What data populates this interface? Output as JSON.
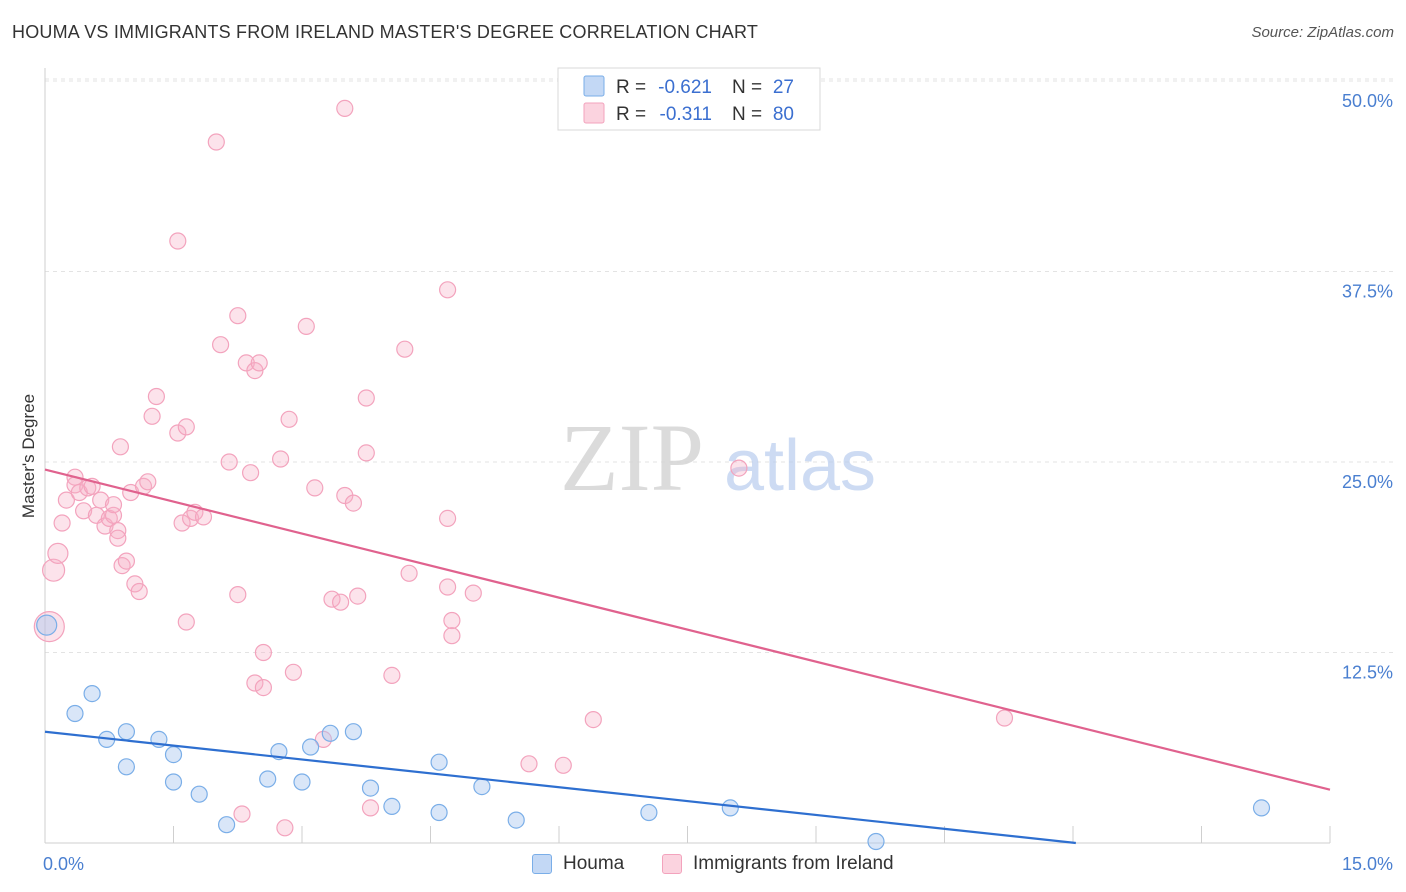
{
  "chart_data": {
    "type": "scatter",
    "title": "HOUMA VS IMMIGRANTS FROM IRELAND MASTER'S DEGREE CORRELATION CHART",
    "source": "Source: ZipAtlas.com",
    "watermark": {
      "zip": "ZIP",
      "atlas": "atlas"
    },
    "ylabel": "Master's Degree",
    "xlim": [
      0,
      15
    ],
    "ylim": [
      0,
      50
    ],
    "x_tick_labels": {
      "min": "0.0%",
      "max": "15.0%"
    },
    "y_ticks": [
      {
        "value": 12.5,
        "label": "12.5%"
      },
      {
        "value": 25,
        "label": "25.0%"
      },
      {
        "value": 37.5,
        "label": "37.5%"
      },
      {
        "value": 50,
        "label": "50.0%"
      }
    ],
    "legend": {
      "rows": [
        {
          "r_label": "R =",
          "r_value": "-0.621",
          "n_label": "N =",
          "n_value": "27"
        },
        {
          "r_label": "R =",
          "r_value": "-0.311",
          "n_label": "N =",
          "n_value": "80"
        }
      ]
    },
    "series": [
      {
        "name": "Houma",
        "color": "#7aaee8",
        "line_color": "#2e6fd0",
        "trend": {
          "x0": 0,
          "y0": 7.3,
          "x1": 15,
          "y1": -1.8
        },
        "points": [
          [
            0.02,
            14.3,
            10
          ],
          [
            0.55,
            9.8,
            8
          ],
          [
            0.35,
            8.5,
            8
          ],
          [
            0.72,
            6.8,
            8
          ],
          [
            0.95,
            7.3,
            8
          ],
          [
            1.33,
            6.8,
            8
          ],
          [
            0.95,
            5.0,
            8
          ],
          [
            1.5,
            5.8,
            8
          ],
          [
            1.5,
            4.0,
            8
          ],
          [
            1.8,
            3.2,
            8
          ],
          [
            2.12,
            1.2,
            8
          ],
          [
            2.6,
            4.2,
            8
          ],
          [
            2.73,
            6.0,
            8
          ],
          [
            3.0,
            4.0,
            8
          ],
          [
            3.1,
            6.3,
            8
          ],
          [
            3.33,
            7.2,
            8
          ],
          [
            3.6,
            7.3,
            8
          ],
          [
            3.8,
            3.6,
            8
          ],
          [
            4.05,
            2.4,
            8
          ],
          [
            4.6,
            5.3,
            8
          ],
          [
            4.6,
            2.0,
            8
          ],
          [
            5.1,
            3.7,
            8
          ],
          [
            5.5,
            1.5,
            8
          ],
          [
            7.05,
            2.0,
            8
          ],
          [
            8.0,
            2.3,
            8
          ],
          [
            9.7,
            0.1,
            8
          ],
          [
            14.2,
            2.3,
            8
          ]
        ]
      },
      {
        "name": "Immigrants from Ireland",
        "color": "#f3a3bd",
        "line_color": "#e0628e",
        "trend": {
          "x0": 0,
          "y0": 24.5,
          "x1": 15,
          "y1": 3.5
        },
        "points": [
          [
            0.05,
            14.2,
            15
          ],
          [
            0.1,
            17.9,
            11
          ],
          [
            0.15,
            19.0,
            10
          ],
          [
            0.2,
            21.0,
            8
          ],
          [
            0.25,
            22.5,
            8
          ],
          [
            0.35,
            24.0,
            8
          ],
          [
            0.35,
            23.5,
            8
          ],
          [
            0.4,
            23.0,
            8
          ],
          [
            0.45,
            21.8,
            8
          ],
          [
            0.5,
            23.3,
            8
          ],
          [
            0.55,
            23.4,
            8
          ],
          [
            0.6,
            21.5,
            8
          ],
          [
            0.65,
            22.5,
            8
          ],
          [
            0.7,
            20.8,
            8
          ],
          [
            0.75,
            21.3,
            8
          ],
          [
            0.8,
            21.5,
            8
          ],
          [
            0.8,
            22.2,
            8
          ],
          [
            0.85,
            20.5,
            8
          ],
          [
            0.9,
            18.2,
            8
          ],
          [
            0.95,
            18.5,
            8
          ],
          [
            1.0,
            23.0,
            8
          ],
          [
            1.05,
            17.0,
            8
          ],
          [
            1.1,
            16.5,
            8
          ],
          [
            1.15,
            23.4,
            8
          ],
          [
            0.85,
            20.0,
            8
          ],
          [
            0.88,
            26.0,
            8
          ],
          [
            1.25,
            28.0,
            8
          ],
          [
            1.3,
            29.3,
            8
          ],
          [
            1.55,
            26.9,
            8
          ],
          [
            1.65,
            27.3,
            8
          ],
          [
            1.6,
            21.0,
            8
          ],
          [
            1.7,
            21.3,
            8
          ],
          [
            1.75,
            21.7,
            8
          ],
          [
            1.85,
            21.4,
            8
          ],
          [
            1.2,
            23.7,
            8
          ],
          [
            2.0,
            46.0,
            8
          ],
          [
            1.55,
            39.5,
            8
          ],
          [
            2.05,
            32.7,
            8
          ],
          [
            2.25,
            34.6,
            8
          ],
          [
            2.35,
            31.5,
            8
          ],
          [
            2.45,
            31.0,
            8
          ],
          [
            2.5,
            31.5,
            8
          ],
          [
            2.15,
            25.0,
            8
          ],
          [
            2.4,
            24.3,
            8
          ],
          [
            2.75,
            25.2,
            8
          ],
          [
            2.85,
            27.8,
            8
          ],
          [
            2.25,
            16.3,
            8
          ],
          [
            1.65,
            14.5,
            8
          ],
          [
            2.55,
            12.5,
            8
          ],
          [
            2.45,
            10.5,
            8
          ],
          [
            2.55,
            10.2,
            8
          ],
          [
            2.9,
            11.2,
            8
          ],
          [
            3.05,
            33.9,
            8
          ],
          [
            3.15,
            23.3,
            8
          ],
          [
            3.5,
            22.8,
            8
          ],
          [
            3.6,
            22.3,
            8
          ],
          [
            3.75,
            29.2,
            8
          ],
          [
            3.75,
            25.6,
            8
          ],
          [
            3.35,
            16.0,
            8
          ],
          [
            3.45,
            15.8,
            8
          ],
          [
            3.65,
            16.2,
            8
          ],
          [
            3.25,
            6.8,
            8
          ],
          [
            2.3,
            1.9,
            8
          ],
          [
            2.8,
            1.0,
            8
          ],
          [
            3.8,
            2.3,
            8
          ],
          [
            3.5,
            48.2,
            8
          ],
          [
            4.7,
            36.3,
            8
          ],
          [
            4.2,
            32.4,
            8
          ],
          [
            4.25,
            17.7,
            8
          ],
          [
            4.05,
            11.0,
            8
          ],
          [
            4.7,
            21.3,
            8
          ],
          [
            4.7,
            16.8,
            8
          ],
          [
            4.75,
            14.6,
            8
          ],
          [
            4.75,
            13.6,
            8
          ],
          [
            5.0,
            16.4,
            8
          ],
          [
            5.65,
            5.2,
            8
          ],
          [
            6.05,
            5.1,
            8
          ],
          [
            6.4,
            8.1,
            8
          ],
          [
            8.1,
            24.6,
            8
          ],
          [
            11.2,
            8.2,
            8
          ]
        ]
      }
    ]
  }
}
